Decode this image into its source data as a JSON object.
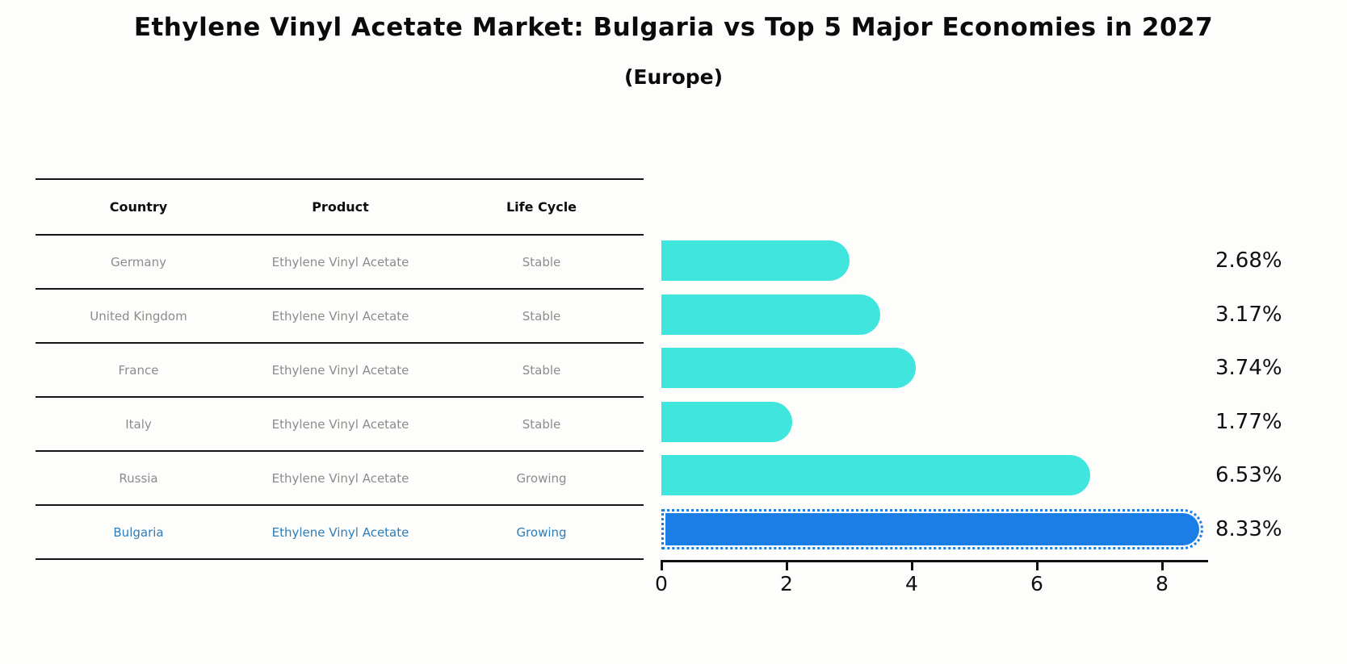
{
  "title": "Ethylene Vinyl Acetate Market: Bulgaria vs Top 5 Major Economies in 2027",
  "subtitle": "(Europe)",
  "table": {
    "headers": [
      "Country",
      "Product",
      "Life Cycle"
    ],
    "rows": [
      {
        "country": "Germany",
        "product": "Ethylene Vinyl Acetate",
        "life_cycle": "Stable",
        "highlighted": false
      },
      {
        "country": "United Kingdom",
        "product": "Ethylene Vinyl Acetate",
        "life_cycle": "Stable",
        "highlighted": false
      },
      {
        "country": "France",
        "product": "Ethylene Vinyl Acetate",
        "life_cycle": "Stable",
        "highlighted": false
      },
      {
        "country": "Italy",
        "product": "Ethylene Vinyl Acetate",
        "life_cycle": "Stable",
        "highlighted": false
      },
      {
        "country": "Russia",
        "product": "Ethylene Vinyl Acetate",
        "life_cycle": "Growing",
        "highlighted": false
      },
      {
        "country": "Bulgaria",
        "product": "Ethylene Vinyl Acetate",
        "life_cycle": "Growing",
        "highlighted": true
      }
    ]
  },
  "chart_data": {
    "type": "bar",
    "orientation": "horizontal",
    "title": "Ethylene Vinyl Acetate Market: Bulgaria vs Top 5 Major Economies in 2027 (Europe)",
    "categories": [
      "Germany",
      "United Kingdom",
      "France",
      "Italy",
      "Russia",
      "Bulgaria"
    ],
    "values": [
      2.68,
      3.17,
      3.74,
      1.77,
      6.53,
      8.33
    ],
    "value_labels": [
      "2.68%",
      "3.17%",
      "3.74%",
      "1.77%",
      "6.53%",
      "8.33%"
    ],
    "xlabel": "",
    "ylabel": "",
    "xlim": [
      0,
      8.7
    ],
    "xticks": [
      0,
      2,
      4,
      6,
      8
    ],
    "grid": false,
    "legend": "none",
    "bar_color": "#40E5DE",
    "highlight_color": "#1A7EE6",
    "highlight_index": 5,
    "highlight_border_style": "dotted"
  },
  "colors": {
    "background": "#fdfdfb",
    "table_line": "#161616",
    "table_text": "#8c8c8c",
    "header_text": "#0d0d0d",
    "highlight_text": "#2d7dbb",
    "axis": "#111111"
  }
}
